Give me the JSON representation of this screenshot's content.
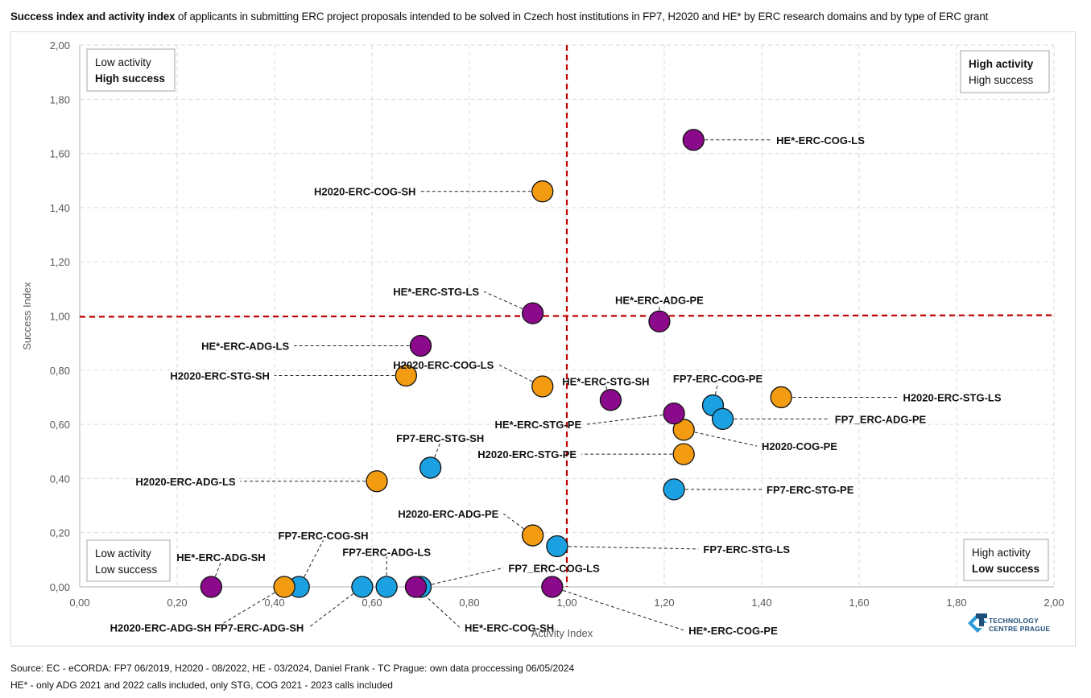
{
  "title": {
    "bold": "Success index and activity index",
    "rest": " of applicants in submitting ERC project proposals intended to be solved in Czech host institutions in FP7, H2020 and HE* by ERC research domains and by type of ERC grant"
  },
  "footer": {
    "source": "Source: EC - eCORDA: FP7 06/2019, H2020 - 08/2022, HE - 03/2024, Daniel Frank - TC Prague: own data proccessing 06/05/2024",
    "note": "HE* - only ADG 2021 and 2022 calls included, only STG, COG 2021 - 2023 calls included"
  },
  "logo": {
    "line1": "TECHNOLOGY",
    "line2": "CENTRE PRAGUE",
    "icon": "technology-centre-prague-logo-icon",
    "colors": {
      "dark": "#1f4e79",
      "light": "#2e9bd6"
    }
  },
  "quadrants": {
    "top_left": {
      "line1": "Low activity",
      "line2": "High success",
      "bold_line": 2
    },
    "top_right": {
      "line1": "High activity",
      "line2": "High success",
      "bold_line": 0
    },
    "bottom_left": {
      "line1": "Low activity",
      "line2": "Low success",
      "bold_line": -1
    },
    "bottom_right": {
      "line1": "High activity",
      "line2": "Low success",
      "bold_line": 1
    }
  },
  "colors": {
    "FP7": "#1ba1e2",
    "H2020": "#f39c12",
    "HE": "#8b0a8b",
    "reference_line": "#c00000",
    "grid": "#d9d9d9",
    "axis": "#bfbfbf"
  },
  "chart_data": {
    "type": "scatter",
    "title": "Success index and activity index of applicants in submitting ERC project proposals intended to be solved in Czech host institutions in FP7, H2020 and HE* by ERC research domains and by type of ERC grant",
    "xlabel": "Activity Index",
    "ylabel": "Success Index",
    "xlim": [
      0,
      2
    ],
    "ylim": [
      0,
      2
    ],
    "x_ticks": [
      "0,00",
      "0,20",
      "0,40",
      "0,60",
      "0,80",
      "1,00",
      "1,20",
      "1,40",
      "1,60",
      "1,80",
      "2,00"
    ],
    "y_ticks": [
      "0,00",
      "0,20",
      "0,40",
      "0,60",
      "0,80",
      "1,00",
      "1,20",
      "1,40",
      "1,60",
      "1,80",
      "2,00"
    ],
    "grid": true,
    "reference_lines": {
      "x": 1.0,
      "y": 1.0,
      "style": "dashed"
    },
    "series": [
      {
        "name": "FP7",
        "points": [
          {
            "label": "FP7-ERC-COG-PE",
            "x": 1.3,
            "y": 0.67,
            "label_dx": 0.01,
            "label_dy": 0.1
          },
          {
            "label": "FP7_ERC-ADG-PE",
            "x": 1.32,
            "y": 0.62,
            "label_dx": 0.23,
            "label_dy": 0.0
          },
          {
            "label": "FP7-ERC-STG-PE",
            "x": 1.22,
            "y": 0.36,
            "label_dx": 0.19,
            "label_dy": 0.0
          },
          {
            "label": "FP7-ERC-STG-SH",
            "x": 0.72,
            "y": 0.44,
            "label_dx": 0.02,
            "label_dy": 0.11
          },
          {
            "label": "FP7-ERC-STG-LS",
            "x": 0.98,
            "y": 0.15,
            "label_dx": 0.3,
            "label_dy": -0.01
          },
          {
            "label": "FP7-ERC-COG-SH",
            "x": 0.45,
            "y": 0.0,
            "label_dx": 0.05,
            "label_dy": 0.19
          },
          {
            "label": "FP7-ERC-ADG-LS",
            "x": 0.63,
            "y": 0.0,
            "label_dx": 0.0,
            "label_dy": 0.13
          },
          {
            "label": "FP7-ERC-ADG-SH",
            "x": 0.58,
            "y": 0.0,
            "label_dx": -0.12,
            "label_dy": -0.15
          },
          {
            "label": "FP7_ERC-COG-LS",
            "x": 0.7,
            "y": 0.0,
            "label_dx": 0.18,
            "label_dy": 0.07
          }
        ]
      },
      {
        "name": "H2020",
        "points": [
          {
            "label": "H2020-ERC-COG-SH",
            "x": 0.95,
            "y": 1.46,
            "label_dx": -0.26,
            "label_dy": 0.0
          },
          {
            "label": "H2020-ERC-COG-LS",
            "x": 0.95,
            "y": 0.74,
            "label_dx": -0.1,
            "label_dy": 0.08
          },
          {
            "label": "H2020-ERC-STG-SH",
            "x": 0.67,
            "y": 0.78,
            "label_dx": -0.28,
            "label_dy": 0.0
          },
          {
            "label": "H2020-ERC-STG-LS",
            "x": 1.44,
            "y": 0.7,
            "label_dx": 0.25,
            "label_dy": 0.0
          },
          {
            "label": "H2020-COG-PE",
            "x": 1.24,
            "y": 0.58,
            "label_dx": 0.16,
            "label_dy": -0.06
          },
          {
            "label": "H2020-ERC-STG-PE",
            "x": 1.24,
            "y": 0.49,
            "label_dx": -0.22,
            "label_dy": 0.0
          },
          {
            "label": "H2020-ERC-ADG-LS",
            "x": 0.61,
            "y": 0.39,
            "label_dx": -0.29,
            "label_dy": 0.0
          },
          {
            "label": "H2020-ERC-ADG-PE",
            "x": 0.93,
            "y": 0.19,
            "label_dx": -0.07,
            "label_dy": 0.08
          },
          {
            "label": "H2020-ERC-ADG-SH",
            "x": 0.42,
            "y": 0.0,
            "label_dx": -0.15,
            "label_dy": -0.15
          }
        ]
      },
      {
        "name": "HE*",
        "points": [
          {
            "label": "HE*-ERC-COG-LS",
            "x": 1.26,
            "y": 1.65,
            "label_dx": 0.17,
            "label_dy": 0.0
          },
          {
            "label": "HE*-ERC-ADG-PE",
            "x": 1.19,
            "y": 0.98,
            "label_dx": 0.0,
            "label_dy": 0.08
          },
          {
            "label": "HE*-ERC-STG-LS",
            "x": 0.93,
            "y": 1.01,
            "label_dx": -0.11,
            "label_dy": 0.08
          },
          {
            "label": "HE*-ERC-ADG-LS",
            "x": 0.7,
            "y": 0.89,
            "label_dx": -0.27,
            "label_dy": 0.0
          },
          {
            "label": "HE*-ERC-STG-SH",
            "x": 1.09,
            "y": 0.69,
            "label_dx": -0.01,
            "label_dy": 0.07
          },
          {
            "label": "HE*-ERC-STG-PE",
            "x": 1.22,
            "y": 0.64,
            "label_dx": -0.19,
            "label_dy": -0.04
          },
          {
            "label": "HE*-ERC-ADG-SH",
            "x": 0.27,
            "y": 0.0,
            "label_dx": 0.02,
            "label_dy": 0.11
          },
          {
            "label": "HE*-ERC-COG-SH",
            "x": 0.69,
            "y": 0.0,
            "label_dx": 0.1,
            "label_dy": -0.15
          },
          {
            "label": "HE*-ERC-COG-PE",
            "x": 0.97,
            "y": 0.0,
            "label_dx": 0.28,
            "label_dy": -0.16
          }
        ]
      }
    ]
  }
}
